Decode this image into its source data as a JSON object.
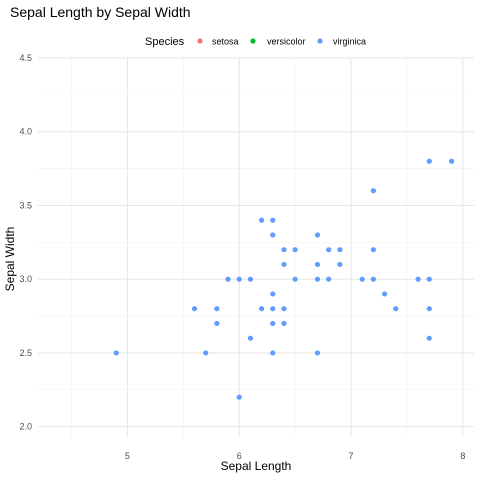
{
  "chart_data": {
    "type": "scatter",
    "title": "Sepal Length by Sepal Width",
    "xlabel": "Sepal Length",
    "ylabel": "Sepal Width",
    "xlim": [
      4.2,
      8.1
    ],
    "ylim": [
      1.93,
      4.5
    ],
    "xticks": [
      5,
      6,
      7,
      8
    ],
    "yticks": [
      2.0,
      2.5,
      3.0,
      3.5,
      4.0,
      4.5
    ],
    "xtick_labels": [
      "5",
      "6",
      "7",
      "8"
    ],
    "ytick_labels": [
      "2.0",
      "2.5",
      "3.0",
      "3.5",
      "4.0",
      "4.5"
    ],
    "grid": true,
    "legend": {
      "title": "Species",
      "position": "top",
      "entries": [
        {
          "label": "setosa",
          "color": "#F8766D"
        },
        {
          "label": "versicolor",
          "color": "#00BA38"
        },
        {
          "label": "virginica",
          "color": "#619CFF"
        }
      ]
    },
    "series": [
      {
        "name": "virginica",
        "color": "#619CFF",
        "points": [
          [
            4.9,
            2.5
          ],
          [
            5.6,
            2.8
          ],
          [
            5.7,
            2.5
          ],
          [
            5.8,
            2.8
          ],
          [
            5.8,
            2.7
          ],
          [
            5.9,
            3.0
          ],
          [
            6.0,
            3.0
          ],
          [
            6.0,
            2.2
          ],
          [
            6.1,
            3.0
          ],
          [
            6.1,
            2.6
          ],
          [
            6.2,
            3.4
          ],
          [
            6.2,
            2.8
          ],
          [
            6.3,
            3.4
          ],
          [
            6.3,
            3.3
          ],
          [
            6.3,
            2.9
          ],
          [
            6.3,
            2.8
          ],
          [
            6.3,
            2.7
          ],
          [
            6.3,
            2.5
          ],
          [
            6.4,
            3.2
          ],
          [
            6.4,
            3.1
          ],
          [
            6.4,
            2.8
          ],
          [
            6.4,
            2.7
          ],
          [
            6.5,
            3.2
          ],
          [
            6.5,
            3.0
          ],
          [
            6.7,
            3.3
          ],
          [
            6.7,
            3.1
          ],
          [
            6.7,
            3.0
          ],
          [
            6.7,
            2.5
          ],
          [
            6.8,
            3.2
          ],
          [
            6.8,
            3.0
          ],
          [
            6.9,
            3.2
          ],
          [
            6.9,
            3.1
          ],
          [
            7.1,
            3.0
          ],
          [
            7.2,
            3.6
          ],
          [
            7.2,
            3.2
          ],
          [
            7.2,
            3.0
          ],
          [
            7.3,
            2.9
          ],
          [
            7.4,
            2.8
          ],
          [
            7.6,
            3.0
          ],
          [
            7.7,
            3.8
          ],
          [
            7.7,
            3.0
          ],
          [
            7.7,
            2.8
          ],
          [
            7.7,
            2.6
          ],
          [
            7.9,
            3.8
          ]
        ]
      }
    ]
  }
}
